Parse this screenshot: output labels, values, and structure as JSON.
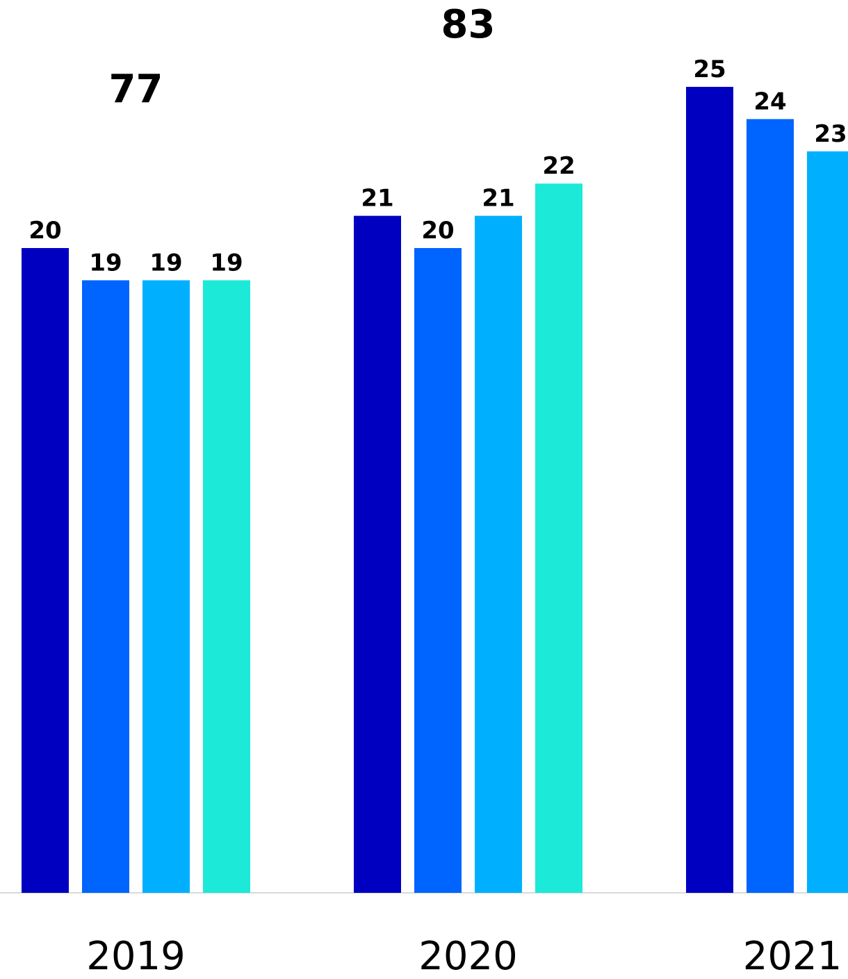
{
  "chart_data": {
    "type": "bar",
    "categories": [
      "2019",
      "2020",
      "2021"
    ],
    "series": [
      {
        "values": [
          20,
          21,
          25
        ],
        "color": "#0000C0"
      },
      {
        "values": [
          19,
          20,
          24
        ],
        "color": "#0064FF"
      },
      {
        "values": [
          19,
          21,
          23
        ],
        "color": "#00B0FF"
      },
      {
        "values": [
          19,
          22,
          null
        ],
        "color": "#1DE9D8"
      }
    ],
    "data_labels": [
      [
        "20",
        "19",
        "19",
        "19"
      ],
      [
        "21",
        "20",
        "21",
        "22"
      ],
      [
        "25",
        "24",
        "23",
        ""
      ]
    ],
    "totals": [
      "77",
      "83",
      ""
    ],
    "ylim": [
      0,
      25
    ],
    "grid": false,
    "axis_line_color": "#D9D9D9"
  }
}
